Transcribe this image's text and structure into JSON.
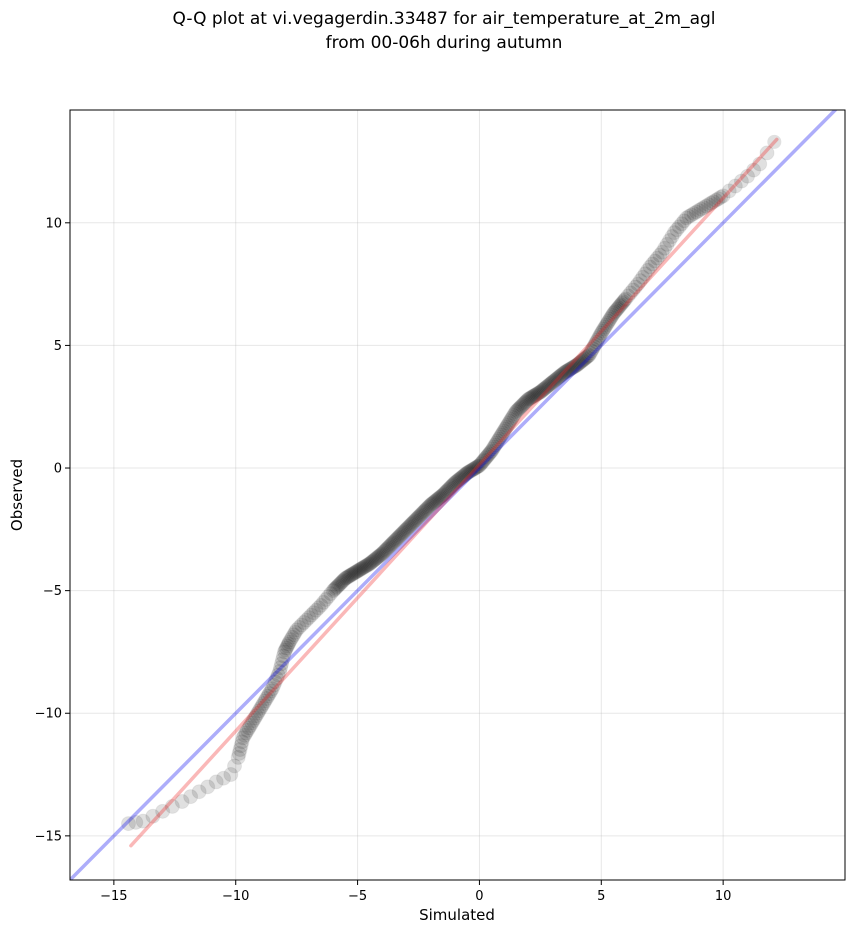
{
  "chart_data": {
    "type": "scatter",
    "title_line1": "Q-Q plot at vi.vegagerdin.33487 for air_temperature_at_2m_agl",
    "title_line2": "from 00-06h during autumn",
    "xlabel": "Simulated",
    "ylabel": "Observed",
    "xlim": [
      -16.8,
      15.0
    ],
    "ylim": [
      -16.8,
      14.6
    ],
    "xticks": [
      -15,
      -10,
      -5,
      0,
      5,
      10
    ],
    "yticks": [
      -15,
      -10,
      -5,
      0,
      5,
      10
    ],
    "xtick_labels": [
      "−15",
      "−10",
      "−5",
      "0",
      "5",
      "10"
    ],
    "ytick_labels": [
      "−15",
      "−10",
      "−5",
      "0",
      "5",
      "10"
    ],
    "grid": true,
    "identity_line": {
      "color": "#0000ee",
      "x": [
        -16.8,
        15.0
      ],
      "y": [
        -16.8,
        15.0
      ]
    },
    "fit_line": {
      "color": "#ee2222",
      "x": [
        -14.3,
        12.2
      ],
      "y": [
        -15.4,
        13.4
      ]
    },
    "quantile_curve": {
      "x": [
        -14.4,
        -13.8,
        -13.0,
        -12.2,
        -11.5,
        -10.8,
        -10.2,
        -9.9,
        -9.7,
        -9.4,
        -9.1,
        -8.8,
        -8.5,
        -8.2,
        -8.0,
        -7.8,
        -7.5,
        -7.0,
        -6.5,
        -6.0,
        -5.5,
        -5.0,
        -4.5,
        -4.0,
        -3.5,
        -3.0,
        -2.5,
        -2.0,
        -1.5,
        -1.0,
        -0.5,
        0.0,
        0.5,
        1.0,
        1.5,
        2.0,
        2.5,
        3.0,
        3.5,
        4.0,
        4.5,
        5.0,
        5.5,
        6.0,
        6.5,
        7.0,
        7.5,
        8.0,
        8.5,
        9.0,
        9.5,
        10.0,
        10.5,
        11.0,
        11.5,
        12.1
      ],
      "y": [
        -14.5,
        -14.4,
        -14.0,
        -13.6,
        -13.2,
        -12.8,
        -12.5,
        -11.8,
        -11.0,
        -10.5,
        -10.0,
        -9.5,
        -9.0,
        -8.3,
        -7.5,
        -7.1,
        -6.6,
        -6.1,
        -5.6,
        -5.0,
        -4.5,
        -4.2,
        -3.9,
        -3.5,
        -3.0,
        -2.5,
        -2.0,
        -1.5,
        -1.1,
        -0.6,
        -0.2,
        0.1,
        0.7,
        1.5,
        2.3,
        2.8,
        3.1,
        3.5,
        3.9,
        4.2,
        4.6,
        5.5,
        6.3,
        6.9,
        7.5,
        8.2,
        8.8,
        9.6,
        10.2,
        10.5,
        10.8,
        11.1,
        11.5,
        11.9,
        12.4,
        13.3
      ]
    }
  }
}
